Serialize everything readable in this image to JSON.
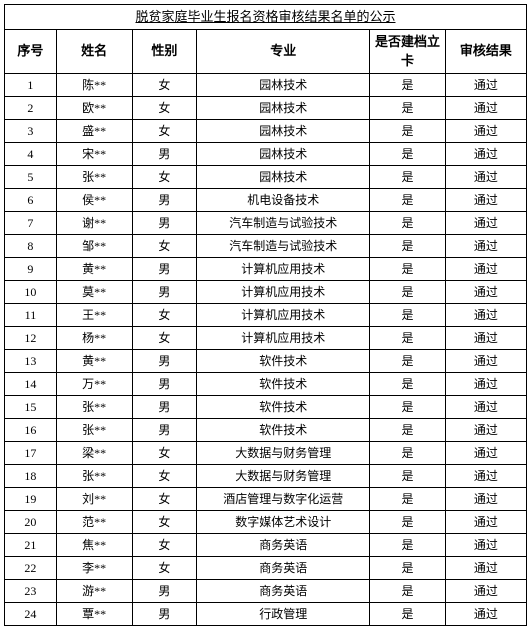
{
  "title": "脱贫家庭毕业生报名资格审核结果名单的公示",
  "columns": {
    "seq": "序号",
    "name": "姓名",
    "gender": "性别",
    "major": "专业",
    "card": "是否建档立卡",
    "result": "审核结果"
  },
  "rows": [
    {
      "seq": "1",
      "name": "陈**",
      "gender": "女",
      "major": "园林技术",
      "card": "是",
      "result": "通过"
    },
    {
      "seq": "2",
      "name": "欧**",
      "gender": "女",
      "major": "园林技术",
      "card": "是",
      "result": "通过"
    },
    {
      "seq": "3",
      "name": "盛**",
      "gender": "女",
      "major": "园林技术",
      "card": "是",
      "result": "通过"
    },
    {
      "seq": "4",
      "name": "宋**",
      "gender": "男",
      "major": "园林技术",
      "card": "是",
      "result": "通过"
    },
    {
      "seq": "5",
      "name": "张**",
      "gender": "女",
      "major": "园林技术",
      "card": "是",
      "result": "通过"
    },
    {
      "seq": "6",
      "name": "侯**",
      "gender": "男",
      "major": "机电设备技术",
      "card": "是",
      "result": "通过"
    },
    {
      "seq": "7",
      "name": "谢**",
      "gender": "男",
      "major": "汽车制造与试验技术",
      "card": "是",
      "result": "通过"
    },
    {
      "seq": "8",
      "name": "邹**",
      "gender": "女",
      "major": "汽车制造与试验技术",
      "card": "是",
      "result": "通过"
    },
    {
      "seq": "9",
      "name": "黄**",
      "gender": "男",
      "major": "计算机应用技术",
      "card": "是",
      "result": "通过"
    },
    {
      "seq": "10",
      "name": "莫**",
      "gender": "男",
      "major": "计算机应用技术",
      "card": "是",
      "result": "通过"
    },
    {
      "seq": "11",
      "name": "王**",
      "gender": "女",
      "major": "计算机应用技术",
      "card": "是",
      "result": "通过"
    },
    {
      "seq": "12",
      "name": "杨**",
      "gender": "女",
      "major": "计算机应用技术",
      "card": "是",
      "result": "通过"
    },
    {
      "seq": "13",
      "name": "黄**",
      "gender": "男",
      "major": "软件技术",
      "card": "是",
      "result": "通过"
    },
    {
      "seq": "14",
      "name": "万**",
      "gender": "男",
      "major": "软件技术",
      "card": "是",
      "result": "通过"
    },
    {
      "seq": "15",
      "name": "张**",
      "gender": "男",
      "major": "软件技术",
      "card": "是",
      "result": "通过"
    },
    {
      "seq": "16",
      "name": "张**",
      "gender": "男",
      "major": "软件技术",
      "card": "是",
      "result": "通过"
    },
    {
      "seq": "17",
      "name": "梁**",
      "gender": "女",
      "major": "大数据与财务管理",
      "card": "是",
      "result": "通过"
    },
    {
      "seq": "18",
      "name": "张**",
      "gender": "女",
      "major": "大数据与财务管理",
      "card": "是",
      "result": "通过"
    },
    {
      "seq": "19",
      "name": "刘**",
      "gender": "女",
      "major": "酒店管理与数字化运营",
      "card": "是",
      "result": "通过"
    },
    {
      "seq": "20",
      "name": "范**",
      "gender": "女",
      "major": "数字媒体艺术设计",
      "card": "是",
      "result": "通过"
    },
    {
      "seq": "21",
      "name": "焦**",
      "gender": "女",
      "major": "商务英语",
      "card": "是",
      "result": "通过"
    },
    {
      "seq": "22",
      "name": "李**",
      "gender": "女",
      "major": "商务英语",
      "card": "是",
      "result": "通过"
    },
    {
      "seq": "23",
      "name": "游**",
      "gender": "男",
      "major": "商务英语",
      "card": "是",
      "result": "通过"
    },
    {
      "seq": "24",
      "name": "覃**",
      "gender": "男",
      "major": "行政管理",
      "card": "是",
      "result": "通过"
    }
  ]
}
